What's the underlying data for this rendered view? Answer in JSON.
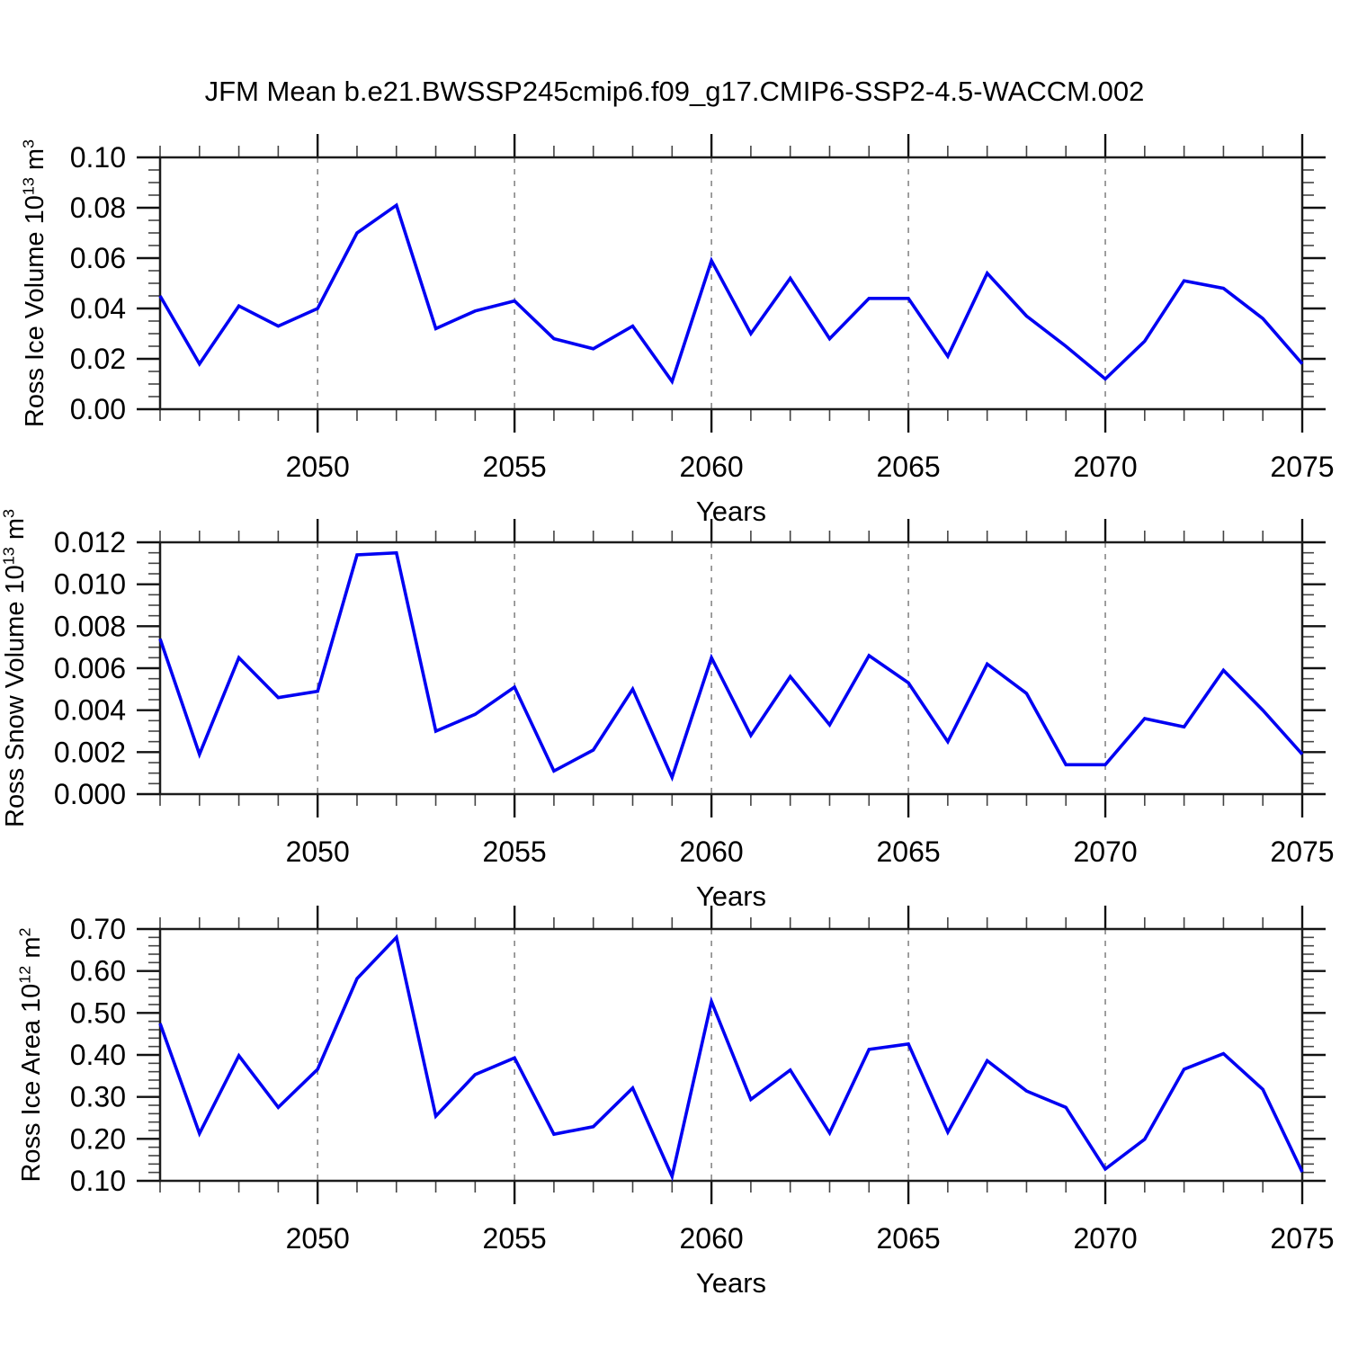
{
  "title": "JFM Mean b.e21.BWSSP245cmip6.f09_g17.CMIP6-SSP2-4.5-WACCM.002",
  "line_color": "#0000f2",
  "grid_color": "#7f7f7f",
  "axis_color": "#1c1c1c",
  "chart_data": [
    {
      "type": "line",
      "ylabel": "Ross Ice Volume 10^13 m^3",
      "ylabel_rich": [
        {
          "text": "Ross Ice Volume 10"
        },
        {
          "text": "13",
          "sup": true
        },
        {
          "text": " m"
        },
        {
          "text": "3",
          "sup": true
        }
      ],
      "xlabel": "Years",
      "xlim": [
        2046,
        2075
      ],
      "ylim": [
        0.0,
        0.1
      ],
      "x": [
        2046,
        2047,
        2048,
        2049,
        2050,
        2051,
        2052,
        2053,
        2054,
        2055,
        2056,
        2057,
        2058,
        2059,
        2060,
        2061,
        2062,
        2063,
        2064,
        2065,
        2066,
        2067,
        2068,
        2069,
        2070,
        2071,
        2072,
        2073,
        2074,
        2075
      ],
      "values": [
        0.045,
        0.018,
        0.041,
        0.033,
        0.04,
        0.07,
        0.081,
        0.032,
        0.039,
        0.043,
        0.028,
        0.024,
        0.033,
        0.011,
        0.059,
        0.03,
        0.052,
        0.028,
        0.044,
        0.044,
        0.021,
        0.054,
        0.037,
        0.025,
        0.012,
        0.027,
        0.051,
        0.048,
        0.036,
        0.018
      ],
      "x_tick_values": [
        2050,
        2055,
        2060,
        2065,
        2070,
        2075
      ],
      "x_tick_labels": [
        "2050",
        "2055",
        "2060",
        "2065",
        "2070",
        "2075"
      ],
      "x_minor_step": 1,
      "y_tick_values": [
        0.0,
        0.02,
        0.04,
        0.06,
        0.08,
        0.1
      ],
      "y_tick_labels": [
        "0.00",
        "0.02",
        "0.04",
        "0.06",
        "0.08",
        "0.10"
      ],
      "y_minor_step": 0.005,
      "grid_x": [
        2050,
        2055,
        2060,
        2065,
        2070
      ]
    },
    {
      "type": "line",
      "ylabel": "Ross Snow Volume 10^13 m^3",
      "ylabel_rich": [
        {
          "text": "Ross Snow Volume 10"
        },
        {
          "text": "13",
          "sup": true
        },
        {
          "text": " m"
        },
        {
          "text": "3",
          "sup": true
        }
      ],
      "xlabel": "Years",
      "xlim": [
        2046,
        2075
      ],
      "ylim": [
        0.0,
        0.012
      ],
      "x": [
        2046,
        2047,
        2048,
        2049,
        2050,
        2051,
        2052,
        2053,
        2054,
        2055,
        2056,
        2057,
        2058,
        2059,
        2060,
        2061,
        2062,
        2063,
        2064,
        2065,
        2066,
        2067,
        2068,
        2069,
        2070,
        2071,
        2072,
        2073,
        2074,
        2075
      ],
      "values": [
        0.0074,
        0.0019,
        0.0065,
        0.0046,
        0.0049,
        0.0114,
        0.0115,
        0.003,
        0.0038,
        0.0051,
        0.0011,
        0.0021,
        0.005,
        0.0008,
        0.0065,
        0.0028,
        0.0056,
        0.0033,
        0.0066,
        0.0053,
        0.0025,
        0.0062,
        0.0048,
        0.0014,
        0.0014,
        0.0036,
        0.0032,
        0.0059,
        0.004,
        0.0019
      ],
      "x_tick_values": [
        2050,
        2055,
        2060,
        2065,
        2070,
        2075
      ],
      "x_tick_labels": [
        "2050",
        "2055",
        "2060",
        "2065",
        "2070",
        "2075"
      ],
      "x_minor_step": 1,
      "y_tick_values": [
        0.0,
        0.002,
        0.004,
        0.006,
        0.008,
        0.01,
        0.012
      ],
      "y_tick_labels": [
        "0.000",
        "0.002",
        "0.004",
        "0.006",
        "0.008",
        "0.010",
        "0.012"
      ],
      "y_minor_step": 0.0005,
      "grid_x": [
        2050,
        2055,
        2060,
        2065,
        2070
      ]
    },
    {
      "type": "line",
      "ylabel": "Ross Ice Area 10^12 m^2",
      "ylabel_rich": [
        {
          "text": "Ross Ice Area 10"
        },
        {
          "text": "12",
          "sup": true
        },
        {
          "text": " m"
        },
        {
          "text": "2",
          "sup": true
        }
      ],
      "xlabel": "Years",
      "xlim": [
        2046,
        2075
      ],
      "ylim": [
        0.1,
        0.7
      ],
      "x": [
        2046,
        2047,
        2048,
        2049,
        2050,
        2051,
        2052,
        2053,
        2054,
        2055,
        2056,
        2057,
        2058,
        2059,
        2060,
        2061,
        2062,
        2063,
        2064,
        2065,
        2066,
        2067,
        2068,
        2069,
        2070,
        2071,
        2072,
        2073,
        2074,
        2075
      ],
      "values": [
        0.475,
        0.213,
        0.398,
        0.275,
        0.366,
        0.582,
        0.68,
        0.254,
        0.353,
        0.393,
        0.211,
        0.229,
        0.321,
        0.111,
        0.527,
        0.294,
        0.364,
        0.214,
        0.413,
        0.426,
        0.216,
        0.386,
        0.314,
        0.275,
        0.128,
        0.199,
        0.366,
        0.403,
        0.318,
        0.121
      ],
      "x_tick_values": [
        2050,
        2055,
        2060,
        2065,
        2070,
        2075
      ],
      "x_tick_labels": [
        "2050",
        "2055",
        "2060",
        "2065",
        "2070",
        "2075"
      ],
      "x_minor_step": 1,
      "y_tick_values": [
        0.1,
        0.2,
        0.3,
        0.4,
        0.5,
        0.6,
        0.7
      ],
      "y_tick_labels": [
        "0.10",
        "0.20",
        "0.30",
        "0.40",
        "0.50",
        "0.60",
        "0.70"
      ],
      "y_minor_step": 0.02,
      "grid_x": [
        2050,
        2055,
        2060,
        2065,
        2070
      ]
    }
  ]
}
